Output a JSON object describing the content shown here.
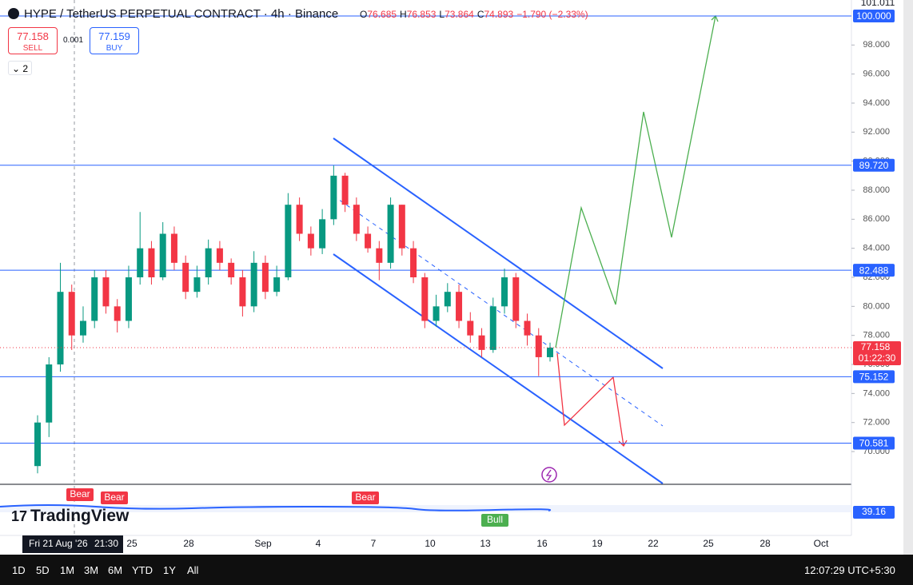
{
  "header": {
    "title": "HYPE / TetherUS PERPETUAL CONTRACT · 4h · Binance",
    "ohlc": [
      {
        "key": "O",
        "value": "76.685"
      },
      {
        "key": "H",
        "value": "76.853"
      },
      {
        "key": "L",
        "value": "73.864"
      },
      {
        "key": "C",
        "value": "74.893"
      }
    ],
    "change": "−1.790 (−2.33%)"
  },
  "order": {
    "sell_price": "77.158",
    "sell": "SELL",
    "quantity": "0.001",
    "buy_price": "77.159",
    "buy": "BUY",
    "layout": "2"
  },
  "price_axis": {
    "ylim": [
      67.8,
      101.1
    ],
    "top_label": "101.011",
    "ticks": [
      {
        "value": 70,
        "label": "70.000"
      },
      {
        "value": 72,
        "label": "72.000"
      },
      {
        "value": 74,
        "label": "74.000"
      },
      {
        "value": 76,
        "label": "76.000"
      },
      {
        "value": 78,
        "label": "78.000"
      },
      {
        "value": 80,
        "label": "80.000"
      },
      {
        "value": 82,
        "label": "82.000"
      },
      {
        "value": 84,
        "label": "84.000"
      },
      {
        "value": 86,
        "label": "86.000"
      },
      {
        "value": 88,
        "label": "88.000"
      },
      {
        "value": 90,
        "label": "90.000"
      },
      {
        "value": 92,
        "label": "92.000"
      },
      {
        "value": 94,
        "label": "94.000"
      },
      {
        "value": 96,
        "label": "96.000"
      },
      {
        "value": 98,
        "label": "98.000"
      }
    ]
  },
  "levels": [
    {
      "value": 100,
      "label": "100.000"
    },
    {
      "value": 89.72,
      "label": "89.720"
    },
    {
      "value": 82.488,
      "label": "82.488"
    },
    {
      "value": 75.152,
      "label": "75.152"
    },
    {
      "value": 70.581,
      "label": "70.581"
    }
  ],
  "current_price": {
    "value": 77.158,
    "label": "77.158",
    "countdown": "01:22:30"
  },
  "candles": {
    "open": [
      69,
      72,
      76,
      81,
      78,
      79,
      82,
      80,
      79,
      82,
      84,
      82,
      85,
      83,
      81,
      82,
      84,
      83,
      82,
      80,
      83,
      81,
      82,
      87,
      85,
      84,
      86,
      89,
      87,
      85,
      84,
      83,
      87,
      84,
      82,
      79,
      80,
      81,
      79,
      78,
      77,
      80,
      82,
      79,
      78,
      76.5
    ],
    "high": [
      72.5,
      76.5,
      83,
      81.5,
      80,
      82.5,
      82.5,
      80.5,
      82.8,
      86.5,
      84.5,
      85.8,
      85.5,
      83.5,
      82.8,
      84.6,
      84.5,
      83.3,
      82.5,
      83.8,
      83.5,
      82.8,
      87.8,
      87.5,
      85.5,
      86.7,
      89.7,
      89.2,
      87.5,
      85.5,
      84.5,
      87.5,
      87,
      84.5,
      82.3,
      80.8,
      81.6,
      81.5,
      79.6,
      78.5,
      80.6,
      82.6,
      82.3,
      79.5,
      78.5,
      77.5
    ],
    "low": [
      68.5,
      71,
      75.5,
      77,
      77.5,
      78.5,
      79.5,
      78.2,
      78.5,
      81.5,
      81.5,
      81.8,
      82.5,
      80.5,
      80.6,
      81.5,
      82.5,
      81.5,
      79.3,
      79.6,
      80.5,
      80.7,
      81.8,
      84.5,
      83.5,
      83.6,
      85.6,
      86.5,
      84.5,
      83.7,
      81.8,
      82.6,
      83.5,
      81.6,
      78.5,
      78.6,
      79.6,
      78.5,
      77.5,
      76.5,
      76.8,
      79.5,
      78.5,
      77.3,
      75.2,
      76.2
    ],
    "close": [
      72,
      76,
      81,
      78,
      79,
      82,
      80,
      79,
      82,
      84,
      82,
      85,
      83,
      81,
      82,
      84,
      83,
      82,
      80,
      83,
      81,
      82,
      87,
      85,
      84,
      86,
      89,
      87,
      85,
      84,
      83,
      87,
      84,
      82,
      79,
      80,
      81,
      79,
      78,
      77,
      80,
      82,
      79,
      78,
      76.5,
      77.158
    ]
  },
  "time_axis": {
    "labels": [
      "25",
      "28",
      "Sep",
      "4",
      "7",
      "10",
      "13",
      "16",
      "19",
      "22",
      "25",
      "28",
      "Oct"
    ],
    "crosshair_date": "Fri 21 Aug '26",
    "crosshair_time": "21:30"
  },
  "indicator": {
    "tags": [
      "Bear",
      "Bear",
      "Bear",
      "Bull"
    ],
    "value": "39.16"
  },
  "brand": "TradingView",
  "toolbar": {
    "ranges": [
      "1D",
      "5D",
      "1M",
      "3M",
      "6M",
      "YTD",
      "1Y",
      "All"
    ],
    "clock": "12:07:29 UTC+5:30"
  }
}
